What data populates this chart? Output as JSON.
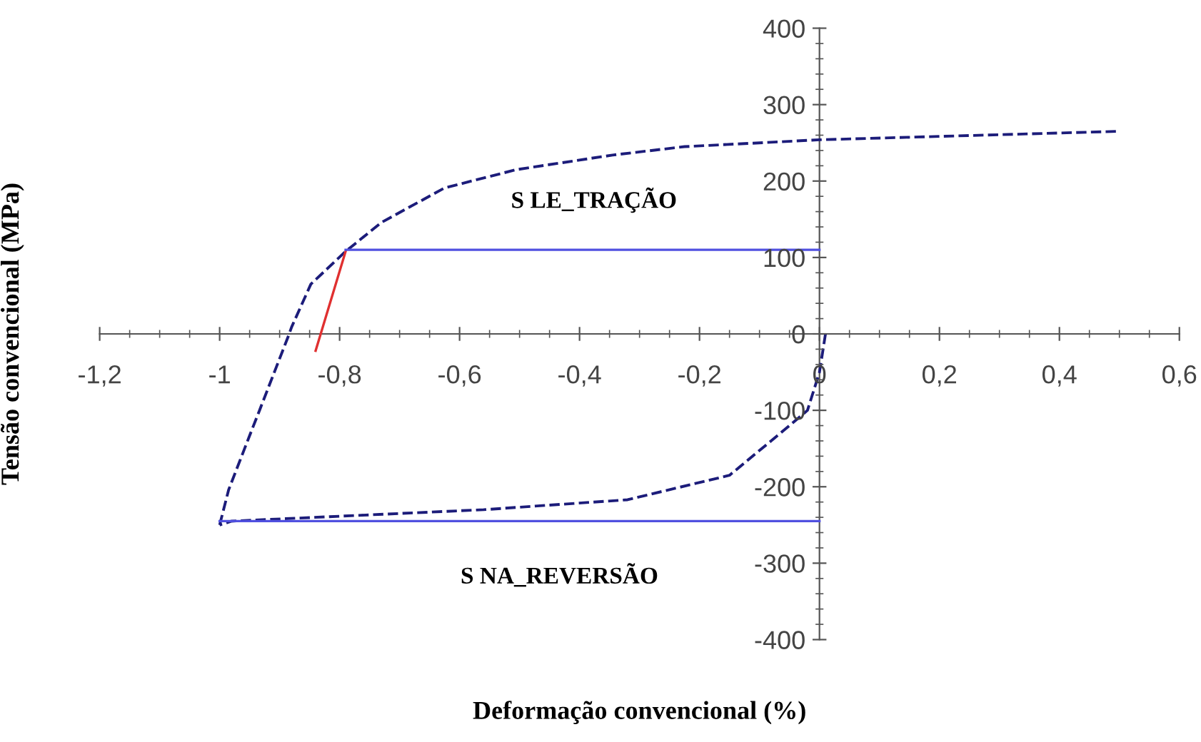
{
  "chart_data": {
    "type": "line",
    "xlabel": "Deformação convencional (%)",
    "ylabel": "Tensão convencional (MPa)",
    "xlim": [
      -1.2,
      0.6
    ],
    "ylim": [
      -400,
      400
    ],
    "xticks": [
      {
        "value": -1.2,
        "label": "-1,2"
      },
      -1,
      {
        "value": -0.8,
        "label": "-0,8"
      },
      {
        "value": -0.6,
        "label": "-0,6"
      },
      {
        "value": -0.4,
        "label": "-0,4"
      },
      {
        "value": -0.2,
        "label": "-0,2"
      },
      0,
      {
        "value": 0.2,
        "label": "0,2"
      },
      {
        "value": 0.4,
        "label": "0,4"
      },
      {
        "value": 0.6,
        "label": "0,6"
      }
    ],
    "yticks": [
      -400,
      -300,
      -200,
      -100,
      0,
      100,
      200,
      300,
      400
    ],
    "grid": false,
    "marker": "none",
    "series": [
      {
        "color": "#1c1c7a",
        "line_style": "dashed",
        "x": [
          0.01,
          0.0,
          -0.02,
          -0.05,
          -0.15,
          -0.32,
          -0.56,
          -0.98,
          -1.0
        ],
        "values": [
          0,
          -50,
          -100,
          -120,
          -185,
          -217,
          -230,
          -245,
          -250
        ]
      },
      {
        "color": "#1c1c7a",
        "line_style": "dashed",
        "x": [
          -1.0,
          -0.985,
          -0.95,
          -0.934,
          -0.886,
          -0.88,
          -0.848,
          -0.79,
          -0.73,
          -0.625,
          -0.505,
          -0.345,
          -0.225,
          0.0,
          0.496
        ],
        "values": [
          -250,
          -204,
          -133,
          -101,
          -4,
          9,
          65,
          108,
          146,
          191,
          215,
          234,
          245,
          254,
          265
        ]
      },
      {
        "color": "#e03030",
        "line_style": "solid",
        "x": [
          -0.84,
          -0.79
        ],
        "values": [
          -22,
          108
        ]
      },
      {
        "name": "S LE_TRAÇÃO",
        "color": "#5050e0",
        "line_style": "solid",
        "x": [
          -0.79,
          0.0
        ],
        "values": [
          110,
          110
        ]
      },
      {
        "name": "S NA_REVERSÃO",
        "color": "#5050e0",
        "line_style": "solid",
        "x": [
          -1.0,
          0.0
        ],
        "values": [
          -245,
          -245
        ]
      }
    ]
  }
}
